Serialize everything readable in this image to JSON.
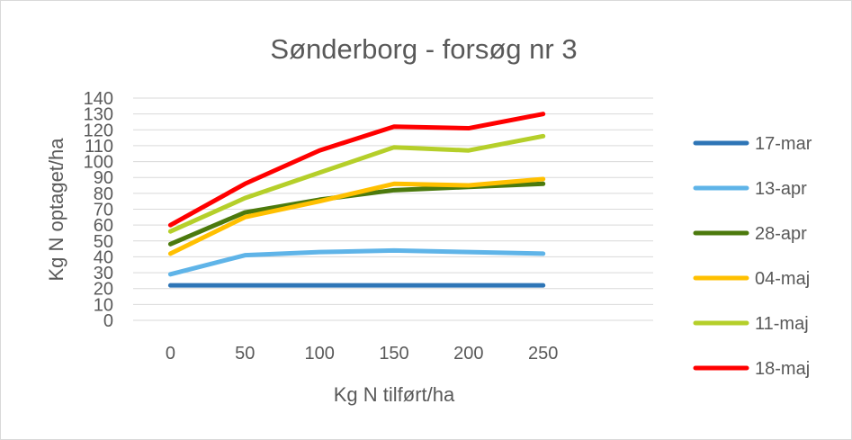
{
  "chart_data": {
    "type": "line",
    "title": "Sønderborg  - forsøg nr 3",
    "xlabel": "Kg N tilført/ha",
    "ylabel": "Kg N optaget/ha",
    "categories": [
      "0",
      "50",
      "100",
      "150",
      "200",
      "250"
    ],
    "ylim": [
      0,
      140
    ],
    "yticks": [
      0,
      10,
      20,
      30,
      40,
      50,
      60,
      70,
      80,
      90,
      100,
      110,
      120,
      130,
      140
    ],
    "grid": true,
    "legend_position": "right",
    "series": [
      {
        "name": "17-mar",
        "color": "#2e75b6",
        "values": [
          22,
          22,
          22,
          22,
          22,
          22
        ]
      },
      {
        "name": "13-apr",
        "color": "#5fb4e8",
        "values": [
          29,
          41,
          43,
          44,
          43,
          42
        ]
      },
      {
        "name": "28-apr",
        "color": "#4c7a0d",
        "values": [
          48,
          68,
          76,
          82,
          84,
          86
        ]
      },
      {
        "name": "04-maj",
        "color": "#ffc000",
        "values": [
          42,
          65,
          75,
          86,
          85,
          89
        ]
      },
      {
        "name": "11-maj",
        "color": "#b5cf2a",
        "values": [
          56,
          77,
          93,
          109,
          107,
          116
        ]
      },
      {
        "name": "18-maj",
        "color": "#ff0000",
        "values": [
          60,
          86,
          107,
          122,
          121,
          130
        ]
      }
    ]
  }
}
